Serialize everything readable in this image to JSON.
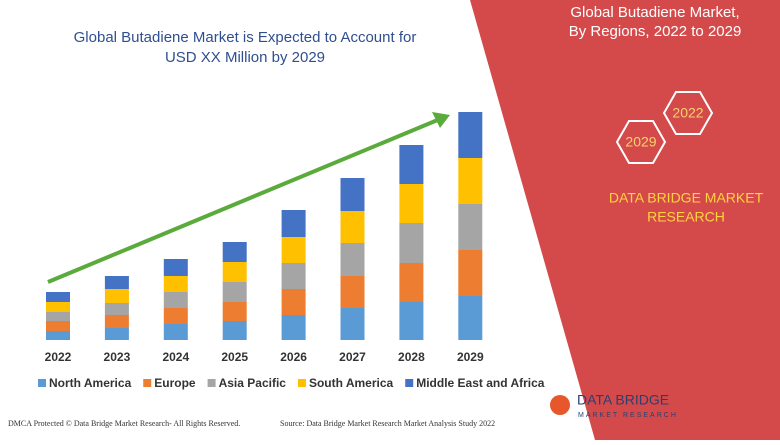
{
  "chart_data": {
    "type": "bar",
    "stacked": true,
    "title": [
      "Global Butadiene Market is Expected to Account for",
      "USD XX Million by 2029"
    ],
    "categories": [
      "2022",
      "2023",
      "2024",
      "2025",
      "2026",
      "2027",
      "2028",
      "2029"
    ],
    "series": [
      {
        "name": "North America",
        "color": "#5b9bd5",
        "values": [
          9,
          12,
          16,
          19,
          25,
          32,
          38,
          44
        ]
      },
      {
        "name": "Europe",
        "color": "#ed7d31",
        "values": [
          10,
          13,
          16,
          19,
          26,
          32,
          39,
          46
        ]
      },
      {
        "name": "Asia Pacific",
        "color": "#a5a5a5",
        "values": [
          9,
          12,
          16,
          20,
          26,
          33,
          40,
          46
        ]
      },
      {
        "name": "South America",
        "color": "#ffc000",
        "values": [
          10,
          14,
          16,
          20,
          26,
          32,
          39,
          46
        ]
      },
      {
        "name": "Middle East and Africa",
        "color": "#4472c4",
        "values": [
          10,
          13,
          17,
          20,
          27,
          33,
          39,
          46
        ]
      }
    ]
  },
  "panel": {
    "title": [
      "Global Butadiene Market,",
      "By Regions, 2022 to 2029"
    ],
    "hexagons": [
      "2022",
      "2029"
    ],
    "brand": [
      "DATA BRIDGE MARKET",
      "RESEARCH"
    ]
  },
  "logo": {
    "name": "DATA BRIDGE",
    "tagline": "MARKET RESEARCH"
  },
  "footer": {
    "left": "DMCA Protected © Data Bridge Market Research- All Rights Reserved.",
    "right": "Source: Data Bridge Market Research Market Analysis Study 2022"
  }
}
